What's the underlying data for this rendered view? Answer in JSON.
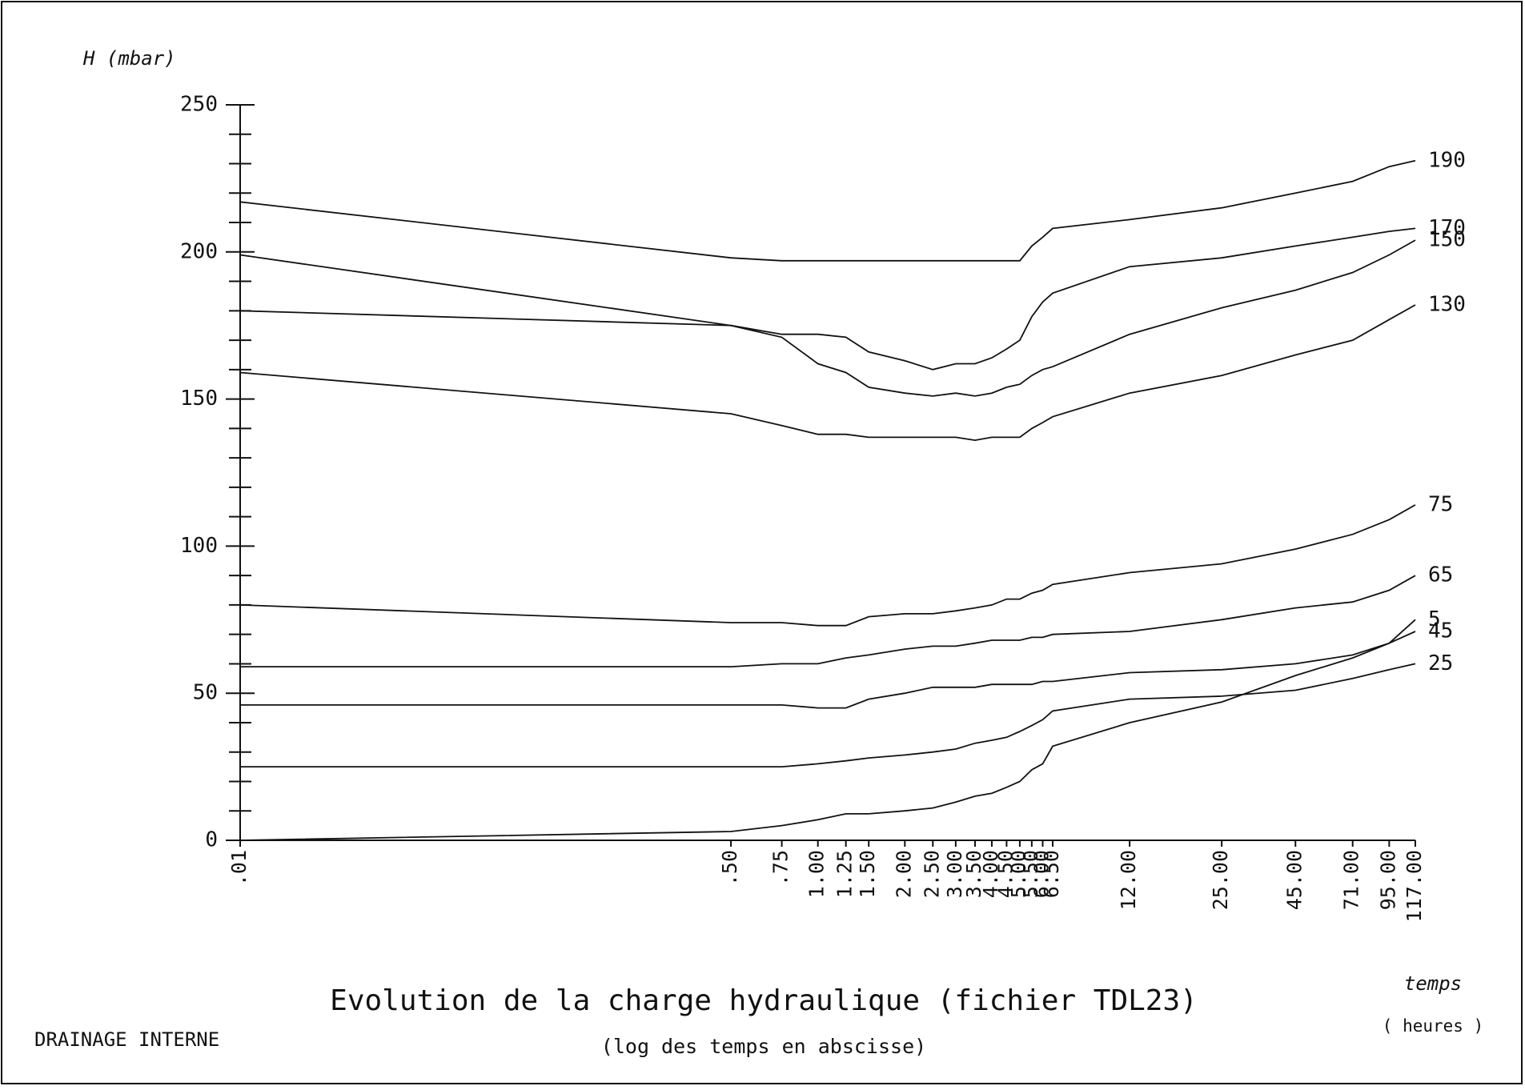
{
  "chart_data": {
    "type": "line",
    "title": "Evolution de la charge hydraulique (fichier TDL23)",
    "subtitle": "(log des temps en abscisse)",
    "y_label": "H (mbar)",
    "x_label": "temps",
    "x_unit": "( heures )",
    "footnote": "DRAINAGE INTERNE",
    "x_scale": "log",
    "x": [
      0.01,
      0.5,
      0.75,
      1,
      1.25,
      1.5,
      2,
      2.5,
      3,
      3.5,
      4,
      4.5,
      5,
      5.5,
      6,
      6.5,
      12,
      25,
      45,
      71,
      95,
      117
    ],
    "xlim": [
      0.01,
      117
    ],
    "xticks": [
      {
        "value": 0.01,
        "label": ".01"
      },
      {
        "value": 0.5,
        "label": ".50"
      },
      {
        "value": 0.75,
        "label": ".75"
      },
      {
        "value": 1,
        "label": "1.00"
      },
      {
        "value": 1.25,
        "label": "1.25"
      },
      {
        "value": 1.5,
        "label": "1.50"
      },
      {
        "value": 2,
        "label": "2.00"
      },
      {
        "value": 2.5,
        "label": "2.50"
      },
      {
        "value": 3,
        "label": "3.00"
      },
      {
        "value": 3.5,
        "label": "3.50"
      },
      {
        "value": 4,
        "label": "4.00"
      },
      {
        "value": 4.5,
        "label": "4.50"
      },
      {
        "value": 5,
        "label": "5.00"
      },
      {
        "value": 5.5,
        "label": "5.50"
      },
      {
        "value": 6,
        "label": "6.00"
      },
      {
        "value": 6.5,
        "label": "6.50"
      },
      {
        "value": 12,
        "label": "12.00"
      },
      {
        "value": 25,
        "label": "25.00"
      },
      {
        "value": 45,
        "label": "45.00"
      },
      {
        "value": 71,
        "label": "71.00"
      },
      {
        "value": 95,
        "label": "95.00"
      },
      {
        "value": 117,
        "label": "117.00"
      }
    ],
    "ylim": [
      0,
      250
    ],
    "yticks": [
      0,
      50,
      100,
      150,
      200,
      250
    ],
    "yminorticks": [
      10,
      20,
      30,
      40,
      60,
      70,
      80,
      90,
      110,
      120,
      130,
      140,
      160,
      170,
      180,
      190,
      210,
      220,
      230,
      240
    ],
    "color": "#111111",
    "series": [
      {
        "name": "190",
        "values": [
          217,
          198,
          197,
          197,
          197,
          197,
          197,
          197,
          197,
          197,
          197,
          197,
          197,
          202,
          205,
          208,
          211,
          215,
          220,
          224,
          229,
          231
        ]
      },
      {
        "name": "170",
        "values": [
          180,
          175,
          172,
          172,
          171,
          166,
          163,
          160,
          162,
          162,
          164,
          167,
          170,
          178,
          183,
          186,
          195,
          198,
          202,
          205,
          207,
          208
        ]
      },
      {
        "name": "150",
        "values": [
          199,
          175,
          171,
          162,
          159,
          154,
          152,
          151,
          152,
          151,
          152,
          154,
          155,
          158,
          160,
          161,
          172,
          181,
          187,
          193,
          199,
          204
        ]
      },
      {
        "name": "130",
        "values": [
          159,
          145,
          141,
          138,
          138,
          137,
          137,
          137,
          137,
          136,
          137,
          137,
          137,
          140,
          142,
          144,
          152,
          158,
          165,
          170,
          177,
          182
        ]
      },
      {
        "name": "75",
        "values": [
          80,
          74,
          74,
          73,
          73,
          76,
          77,
          77,
          78,
          79,
          80,
          82,
          82,
          84,
          85,
          87,
          91,
          94,
          99,
          104,
          109,
          114
        ]
      },
      {
        "name": "65",
        "values": [
          59,
          59,
          60,
          60,
          62,
          63,
          65,
          66,
          66,
          67,
          68,
          68,
          68,
          69,
          69,
          70,
          71,
          75,
          79,
          81,
          85,
          90
        ]
      },
      {
        "name": "5",
        "values": [
          0,
          3,
          5,
          7,
          9,
          9,
          10,
          11,
          13,
          15,
          16,
          18,
          20,
          24,
          26,
          32,
          40,
          47,
          56,
          62,
          67,
          75
        ]
      },
      {
        "name": "45",
        "values": [
          46,
          46,
          46,
          45,
          45,
          48,
          50,
          52,
          52,
          52,
          53,
          53,
          53,
          53,
          54,
          54,
          57,
          58,
          60,
          63,
          67,
          71
        ]
      },
      {
        "name": "25",
        "values": [
          25,
          25,
          25,
          26,
          27,
          28,
          29,
          30,
          31,
          33,
          34,
          35,
          37,
          39,
          41,
          44,
          48,
          49,
          51,
          55,
          58,
          60
        ]
      }
    ]
  }
}
